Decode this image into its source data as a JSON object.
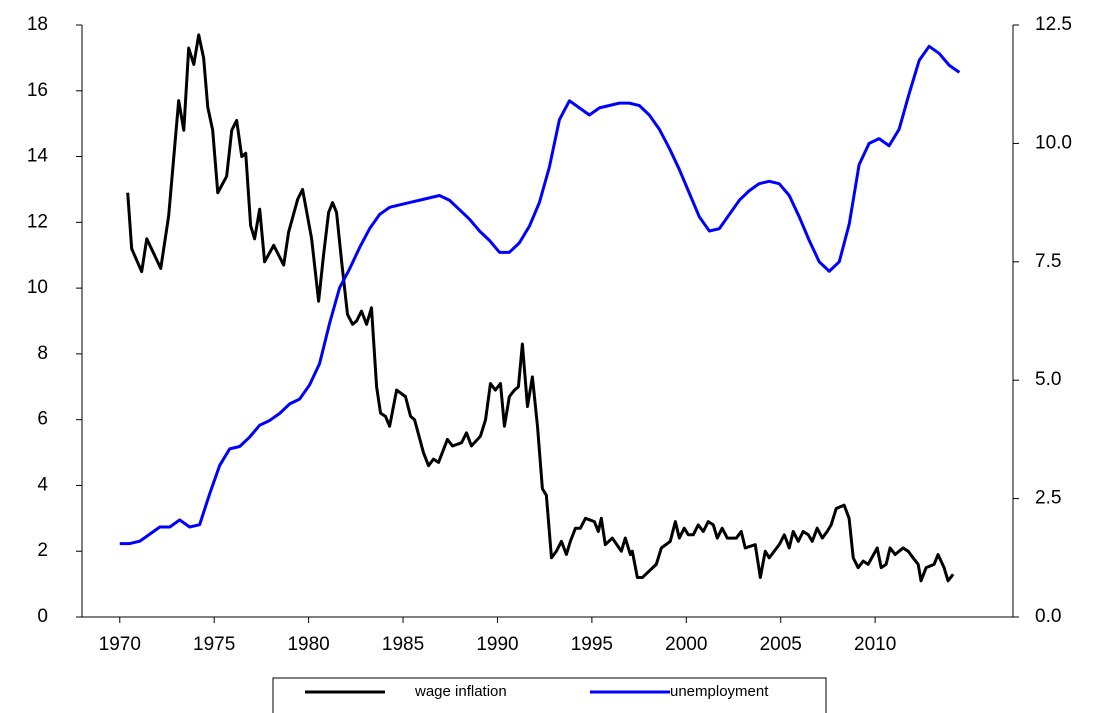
{
  "chart_data": {
    "type": "line",
    "xlim": [
      1968,
      2017.3
    ],
    "xticks": [
      1970,
      1975,
      1980,
      1985,
      1990,
      1995,
      2000,
      2005,
      2010
    ],
    "ylim": [
      0,
      18
    ],
    "yticks": [
      0,
      2,
      4,
      6,
      8,
      10,
      12,
      14,
      16,
      18
    ],
    "y2lim": [
      0,
      12.5
    ],
    "y2ticks": [
      {
        "value": 0,
        "label": "0.0"
      },
      2.5,
      {
        "value": 5,
        "label": "5.0"
      },
      7.5,
      {
        "value": 10,
        "label": "10.0"
      },
      12.5
    ],
    "grid": false,
    "legend": "bottom",
    "series": [
      {
        "name": "wage inflation",
        "color": "#000000",
        "x": [
          1970.42,
          1970.63,
          1971.16,
          1971.43,
          1972.17,
          1972.59,
          1973.12,
          1973.39,
          1973.65,
          1973.92,
          1974.18,
          1974.44,
          1974.66,
          1974.92,
          1975.19,
          1975.66,
          1975.93,
          1976.19,
          1976.46,
          1976.67,
          1976.93,
          1977.14,
          1977.41,
          1977.67,
          1978.15,
          1978.68,
          1978.94,
          1979.42,
          1979.68,
          1980.16,
          1980.53,
          1980.79,
          1981.06,
          1981.27,
          1981.48,
          1981.75,
          1982.06,
          1982.33,
          1982.54,
          1982.8,
          1983.07,
          1983.33,
          1983.6,
          1983.81,
          1984.07,
          1984.29,
          1984.66,
          1985.13,
          1985.4,
          1985.61,
          1986.08,
          1986.35,
          1986.61,
          1986.88,
          1987.35,
          1987.62,
          1988.1,
          1988.36,
          1988.62,
          1989.1,
          1989.37,
          1989.63,
          1989.89,
          1990.16,
          1990.37,
          1990.63,
          1990.9,
          1991.11,
          1991.32,
          1991.59,
          1991.85,
          1992.12,
          1992.38,
          1992.59,
          1992.86,
          1993.12,
          1993.39,
          1993.65,
          1993.86,
          1994.13,
          1994.39,
          1994.66,
          1995.13,
          1995.34,
          1995.5,
          1995.71,
          1996.08,
          1996.56,
          1996.77,
          1997.04,
          1997.14,
          1997.41,
          1997.67,
          1998.41,
          1998.68,
          1999.15,
          1999.42,
          1999.63,
          1999.89,
          2000.11,
          2000.37,
          2000.63,
          2000.9,
          2001.16,
          2001.43,
          2001.64,
          2001.9,
          2002.17,
          2002.65,
          2002.91,
          2003.12,
          2003.65,
          2003.92,
          2004.18,
          2004.39,
          2004.92,
          2005.19,
          2005.45,
          2005.66,
          2005.93,
          2006.19,
          2006.46,
          2006.67,
          2006.93,
          2007.2,
          2007.46,
          2007.67,
          2007.94,
          2008.36,
          2008.62,
          2008.84,
          2009.1,
          2009.37,
          2009.63,
          2010.11,
          2010.32,
          2010.58,
          2010.79,
          2011.06,
          2011.48,
          2011.75,
          2012.01,
          2012.28,
          2012.43,
          2012.7,
          2013.12,
          2013.33,
          2013.65,
          2013.86,
          2014.13
        ],
        "values": [
          12.9,
          11.2,
          10.5,
          11.5,
          10.6,
          12.2,
          15.7,
          14.8,
          17.3,
          16.8,
          17.7,
          17.0,
          15.5,
          14.8,
          12.9,
          13.4,
          14.8,
          15.1,
          14.0,
          14.1,
          11.9,
          11.5,
          12.4,
          10.8,
          11.3,
          10.7,
          11.7,
          12.7,
          13.0,
          11.5,
          9.6,
          11.0,
          12.3,
          12.6,
          12.3,
          10.8,
          9.2,
          8.9,
          9.0,
          9.3,
          8.9,
          9.4,
          7.0,
          6.2,
          6.1,
          5.8,
          6.9,
          6.7,
          6.1,
          6.0,
          5.0,
          4.6,
          4.8,
          4.7,
          5.4,
          5.2,
          5.3,
          5.6,
          5.2,
          5.5,
          6.0,
          7.1,
          6.9,
          7.1,
          5.8,
          6.7,
          6.9,
          7.0,
          8.3,
          6.4,
          7.3,
          5.8,
          3.9,
          3.7,
          1.8,
          2.0,
          2.3,
          1.9,
          2.3,
          2.7,
          2.7,
          3.0,
          2.9,
          2.6,
          3.0,
          2.2,
          2.4,
          2.0,
          2.4,
          1.9,
          2.0,
          1.2,
          1.2,
          1.6,
          2.1,
          2.3,
          2.9,
          2.4,
          2.7,
          2.5,
          2.5,
          2.8,
          2.6,
          2.9,
          2.8,
          2.4,
          2.7,
          2.4,
          2.4,
          2.6,
          2.1,
          2.2,
          1.2,
          2.0,
          1.8,
          2.2,
          2.5,
          2.1,
          2.6,
          2.3,
          2.6,
          2.5,
          2.3,
          2.7,
          2.4,
          2.6,
          2.8,
          3.3,
          3.4,
          3.0,
          1.8,
          1.5,
          1.7,
          1.6,
          2.1,
          1.5,
          1.6,
          2.1,
          1.9,
          2.1,
          2.0,
          1.8,
          1.6,
          1.1,
          1.5,
          1.6,
          1.9,
          1.5,
          1.1,
          1.3
        ]
      },
      {
        "name": "unemployment",
        "color": "#0000ff",
        "axis": "y2",
        "x": [
          1970.0,
          1970.53,
          1971.06,
          1971.59,
          1972.12,
          1972.65,
          1973.17,
          1973.7,
          1974.23,
          1974.76,
          1975.29,
          1975.82,
          1976.35,
          1976.88,
          1977.41,
          1977.94,
          1978.47,
          1979.0,
          1979.52,
          1980.05,
          1980.58,
          1981.11,
          1981.64,
          1982.17,
          1982.7,
          1983.23,
          1983.76,
          1984.29,
          1984.81,
          1985.34,
          1985.87,
          1986.4,
          1986.93,
          1987.46,
          1987.99,
          1988.52,
          1989.05,
          1989.58,
          1990.11,
          1990.63,
          1991.16,
          1991.69,
          1992.22,
          1992.75,
          1993.28,
          1993.81,
          1994.34,
          1994.87,
          1995.4,
          1995.93,
          1996.46,
          1996.98,
          1997.51,
          1998.04,
          1998.57,
          1999.1,
          1999.63,
          2000.16,
          2000.69,
          2001.22,
          2001.75,
          2002.28,
          2002.81,
          2003.33,
          2003.86,
          2004.39,
          2004.92,
          2005.45,
          2005.98,
          2006.51,
          2007.04,
          2007.57,
          2008.1,
          2008.63,
          2009.15,
          2009.68,
          2010.21,
          2010.74,
          2011.27,
          2011.8,
          2012.33,
          2012.86,
          2013.39,
          2013.92,
          2014.46
        ],
        "values": [
          1.55,
          1.55,
          1.6,
          1.75,
          1.9,
          1.9,
          2.05,
          1.9,
          1.95,
          2.6,
          3.2,
          3.55,
          3.6,
          3.8,
          4.05,
          4.15,
          4.3,
          4.5,
          4.6,
          4.9,
          5.35,
          6.2,
          6.95,
          7.35,
          7.8,
          8.2,
          8.5,
          8.65,
          8.7,
          8.75,
          8.8,
          8.85,
          8.9,
          8.8,
          8.6,
          8.4,
          8.15,
          7.95,
          7.7,
          7.7,
          7.9,
          8.25,
          8.75,
          9.5,
          10.5,
          10.9,
          10.75,
          10.6,
          10.75,
          10.8,
          10.85,
          10.85,
          10.8,
          10.6,
          10.3,
          9.9,
          9.45,
          8.95,
          8.45,
          8.15,
          8.2,
          8.5,
          8.8,
          9.0,
          9.15,
          9.2,
          9.15,
          8.9,
          8.45,
          7.95,
          7.5,
          7.3,
          7.5,
          8.3,
          9.55,
          10.0,
          10.1,
          9.95,
          10.3,
          11.05,
          11.75,
          12.05,
          11.9,
          11.65,
          11.5
        ]
      }
    ]
  }
}
